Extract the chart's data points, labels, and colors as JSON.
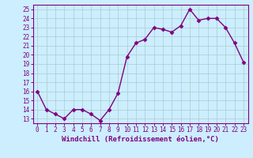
{
  "hours": [
    0,
    1,
    2,
    3,
    4,
    5,
    6,
    7,
    8,
    9,
    10,
    11,
    12,
    13,
    14,
    15,
    16,
    17,
    18,
    19,
    20,
    21,
    22,
    23
  ],
  "values": [
    16,
    14,
    13.5,
    13,
    14,
    14,
    13.5,
    12.8,
    14,
    15.8,
    19.8,
    21.3,
    21.7,
    23,
    22.8,
    22.5,
    23.2,
    25,
    23.8,
    24,
    24,
    23,
    21.3,
    19.2
  ],
  "line_color": "#800080",
  "marker": "D",
  "marker_size": 2.5,
  "bg_color": "#cceeff",
  "grid_color": "#aacccc",
  "xlabel": "Windchill (Refroidissement éolien,°C)",
  "ylim": [
    12.5,
    25.5
  ],
  "yticks": [
    13,
    14,
    15,
    16,
    17,
    18,
    19,
    20,
    21,
    22,
    23,
    24,
    25
  ],
  "xticks": [
    0,
    1,
    2,
    3,
    4,
    5,
    6,
    7,
    8,
    9,
    10,
    11,
    12,
    13,
    14,
    15,
    16,
    17,
    18,
    19,
    20,
    21,
    22,
    23
  ],
  "tick_color": "#800080",
  "label_color": "#800080",
  "spine_color": "#800080",
  "linewidth": 1.0,
  "xlabel_fontsize": 6.5,
  "tick_fontsize": 5.5
}
